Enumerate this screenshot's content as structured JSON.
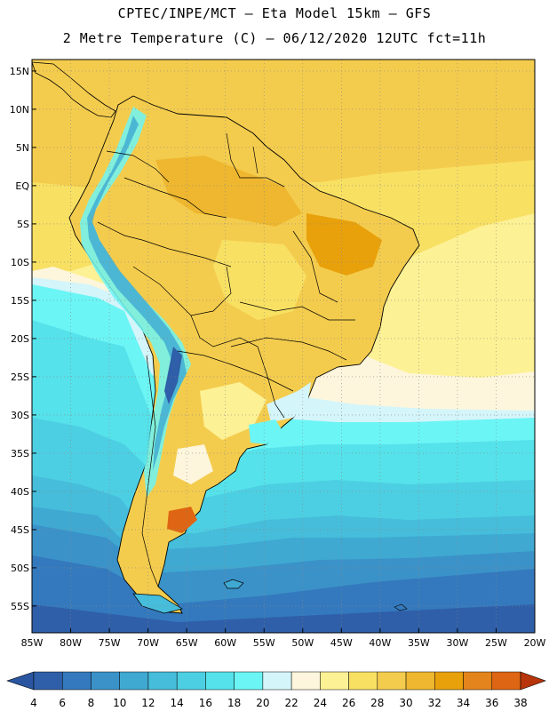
{
  "header": {
    "line1": "CPTEC/INPE/MCT –  Eta Model 15km – GFS",
    "line2": "2 Metre Temperature (C) – 06/12/2020 12UTC fct=11h"
  },
  "map": {
    "lat_labels": [
      "15N",
      "10N",
      "5N",
      "EQ",
      "5S",
      "10S",
      "15S",
      "20S",
      "25S",
      "30S",
      "35S",
      "40S",
      "45S",
      "50S",
      "55S"
    ],
    "lat_values": [
      15,
      10,
      5,
      0,
      -5,
      -10,
      -15,
      -20,
      -25,
      -30,
      -35,
      -40,
      -45,
      -50,
      -55
    ],
    "lon_labels": [
      "85W",
      "80W",
      "75W",
      "70W",
      "65W",
      "60W",
      "55W",
      "50W",
      "45W",
      "40W",
      "35W",
      "30W",
      "25W",
      "20W"
    ],
    "lon_values": [
      -85,
      -80,
      -75,
      -70,
      -65,
      -60,
      -55,
      -50,
      -45,
      -40,
      -35,
      -30,
      -25,
      -20
    ],
    "extent": {
      "lon_min": -85,
      "lon_max": -20,
      "lat_min": -58.5,
      "lat_max": 16.5
    },
    "grid": "dotted"
  },
  "colorbar": {
    "labels": [
      "4",
      "6",
      "8",
      "10",
      "12",
      "14",
      "16",
      "18",
      "20",
      "22",
      "24",
      "26",
      "28",
      "30",
      "32",
      "34",
      "36",
      "38"
    ],
    "colors": [
      "#2f5fa8",
      "#3479bd",
      "#3b92c8",
      "#3fa9d2",
      "#46bddb",
      "#4dcfe3",
      "#55e2ea",
      "#6cf5f5",
      "#d4f5fa",
      "#fdf6dc",
      "#fdf195",
      "#f8e063",
      "#f4cc4d",
      "#eeb72f",
      "#e8a10b",
      "#e4841c",
      "#de6513",
      "#d24a0a",
      "#b8340a"
    ],
    "under_color": "#2a55a0",
    "over_color": "#b8340a"
  }
}
